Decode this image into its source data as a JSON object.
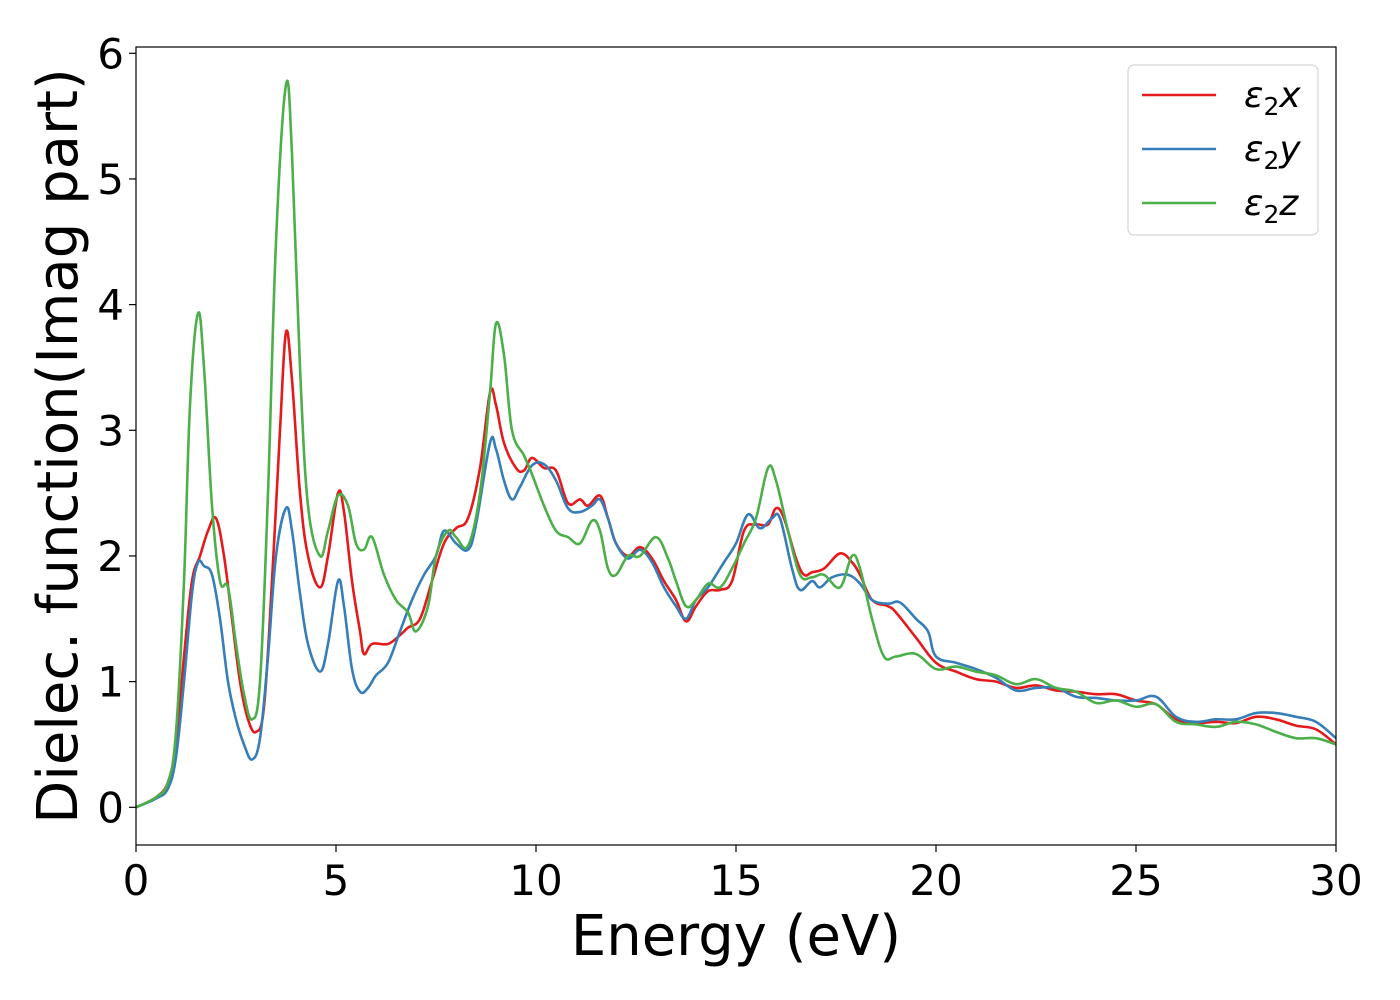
{
  "chart_data": {
    "type": "line",
    "title": "",
    "xlabel": "Energy (eV)",
    "ylabel": "Dielec. function(Imag part)",
    "xlim": [
      0,
      30
    ],
    "ylim": [
      -0.3,
      6.05
    ],
    "xticks": [
      0,
      5,
      10,
      15,
      20,
      25,
      30
    ],
    "xtick_labels": [
      "0",
      "5",
      "10",
      "15",
      "20",
      "25",
      "30"
    ],
    "yticks": [
      0,
      1,
      2,
      3,
      4,
      5,
      6
    ],
    "ytick_labels": [
      "0",
      "1",
      "2",
      "3",
      "4",
      "5",
      "6"
    ],
    "grid": false,
    "legend": {
      "position": "top-right",
      "entries": [
        {
          "symbol": "ε",
          "sub": "2",
          "var": "x"
        },
        {
          "symbol": "ε",
          "sub": "2",
          "var": "y"
        },
        {
          "symbol": "ε",
          "sub": "2",
          "var": "z"
        }
      ]
    },
    "series": [
      {
        "color": "#e41a1c",
        "points": [
          [
            0,
            0
          ],
          [
            0.5,
            0.08
          ],
          [
            0.8,
            0.2
          ],
          [
            1.0,
            0.5
          ],
          [
            1.2,
            1.2
          ],
          [
            1.4,
            1.8
          ],
          [
            1.6,
            2.0
          ],
          [
            1.8,
            2.2
          ],
          [
            2.0,
            2.3
          ],
          [
            2.2,
            2.0
          ],
          [
            2.4,
            1.5
          ],
          [
            2.6,
            1.0
          ],
          [
            2.8,
            0.7
          ],
          [
            3.0,
            0.6
          ],
          [
            3.2,
            0.8
          ],
          [
            3.4,
            1.8
          ],
          [
            3.6,
            3.0
          ],
          [
            3.75,
            3.78
          ],
          [
            3.9,
            3.4
          ],
          [
            4.1,
            2.5
          ],
          [
            4.3,
            2.0
          ],
          [
            4.6,
            1.75
          ],
          [
            4.8,
            2.0
          ],
          [
            5.05,
            2.5
          ],
          [
            5.2,
            2.35
          ],
          [
            5.4,
            1.8
          ],
          [
            5.6,
            1.4
          ],
          [
            5.7,
            1.22
          ],
          [
            5.9,
            1.3
          ],
          [
            6.3,
            1.3
          ],
          [
            6.6,
            1.37
          ],
          [
            6.8,
            1.43
          ],
          [
            7.1,
            1.5
          ],
          [
            7.4,
            1.8
          ],
          [
            7.7,
            2.1
          ],
          [
            8.0,
            2.22
          ],
          [
            8.3,
            2.3
          ],
          [
            8.6,
            2.7
          ],
          [
            8.85,
            3.3
          ],
          [
            9.0,
            3.2
          ],
          [
            9.2,
            2.9
          ],
          [
            9.5,
            2.7
          ],
          [
            9.7,
            2.68
          ],
          [
            9.9,
            2.78
          ],
          [
            10.2,
            2.7
          ],
          [
            10.5,
            2.68
          ],
          [
            10.8,
            2.42
          ],
          [
            11.1,
            2.45
          ],
          [
            11.3,
            2.4
          ],
          [
            11.6,
            2.48
          ],
          [
            11.8,
            2.3
          ],
          [
            12.0,
            2.1
          ],
          [
            12.3,
            2.0
          ],
          [
            12.6,
            2.07
          ],
          [
            12.9,
            1.98
          ],
          [
            13.2,
            1.8
          ],
          [
            13.5,
            1.65
          ],
          [
            13.75,
            1.48
          ],
          [
            14.0,
            1.6
          ],
          [
            14.3,
            1.72
          ],
          [
            14.6,
            1.73
          ],
          [
            14.9,
            1.8
          ],
          [
            15.2,
            2.2
          ],
          [
            15.5,
            2.25
          ],
          [
            15.8,
            2.25
          ],
          [
            16.0,
            2.38
          ],
          [
            16.2,
            2.3
          ],
          [
            16.5,
            1.98
          ],
          [
            16.7,
            1.85
          ],
          [
            16.9,
            1.87
          ],
          [
            17.2,
            1.9
          ],
          [
            17.6,
            2.02
          ],
          [
            17.9,
            1.95
          ],
          [
            18.1,
            1.85
          ],
          [
            18.4,
            1.65
          ],
          [
            18.8,
            1.6
          ],
          [
            19.0,
            1.55
          ],
          [
            19.5,
            1.35
          ],
          [
            20.0,
            1.15
          ],
          [
            20.5,
            1.08
          ],
          [
            21.0,
            1.02
          ],
          [
            21.5,
            1.0
          ],
          [
            22.0,
            0.95
          ],
          [
            22.5,
            0.97
          ],
          [
            23.0,
            0.93
          ],
          [
            23.5,
            0.92
          ],
          [
            24.0,
            0.9
          ],
          [
            24.5,
            0.9
          ],
          [
            25.0,
            0.85
          ],
          [
            25.5,
            0.82
          ],
          [
            26.0,
            0.7
          ],
          [
            26.5,
            0.67
          ],
          [
            27.0,
            0.68
          ],
          [
            27.5,
            0.67
          ],
          [
            28.0,
            0.72
          ],
          [
            28.5,
            0.7
          ],
          [
            29.0,
            0.65
          ],
          [
            29.5,
            0.62
          ],
          [
            30.0,
            0.5
          ]
        ]
      },
      {
        "color": "#377eb8",
        "points": [
          [
            0,
            0
          ],
          [
            0.5,
            0.07
          ],
          [
            0.8,
            0.15
          ],
          [
            1.0,
            0.4
          ],
          [
            1.2,
            1.0
          ],
          [
            1.4,
            1.7
          ],
          [
            1.55,
            1.95
          ],
          [
            1.7,
            1.92
          ],
          [
            1.9,
            1.85
          ],
          [
            2.1,
            1.5
          ],
          [
            2.3,
            1.0
          ],
          [
            2.5,
            0.7
          ],
          [
            2.7,
            0.5
          ],
          [
            2.9,
            0.38
          ],
          [
            3.1,
            0.55
          ],
          [
            3.3,
            1.2
          ],
          [
            3.5,
            2.0
          ],
          [
            3.75,
            2.38
          ],
          [
            3.9,
            2.2
          ],
          [
            4.1,
            1.7
          ],
          [
            4.3,
            1.3
          ],
          [
            4.6,
            1.08
          ],
          [
            4.8,
            1.3
          ],
          [
            5.05,
            1.8
          ],
          [
            5.2,
            1.6
          ],
          [
            5.4,
            1.1
          ],
          [
            5.6,
            0.92
          ],
          [
            5.8,
            0.95
          ],
          [
            6.0,
            1.05
          ],
          [
            6.3,
            1.15
          ],
          [
            6.6,
            1.4
          ],
          [
            6.9,
            1.65
          ],
          [
            7.2,
            1.85
          ],
          [
            7.5,
            2.0
          ],
          [
            7.7,
            2.2
          ],
          [
            8.0,
            2.1
          ],
          [
            8.3,
            2.05
          ],
          [
            8.5,
            2.25
          ],
          [
            8.85,
            2.9
          ],
          [
            9.0,
            2.85
          ],
          [
            9.2,
            2.6
          ],
          [
            9.4,
            2.45
          ],
          [
            9.6,
            2.55
          ],
          [
            9.9,
            2.72
          ],
          [
            10.2,
            2.73
          ],
          [
            10.5,
            2.6
          ],
          [
            10.8,
            2.38
          ],
          [
            11.1,
            2.35
          ],
          [
            11.4,
            2.4
          ],
          [
            11.6,
            2.45
          ],
          [
            11.8,
            2.3
          ],
          [
            12.0,
            2.1
          ],
          [
            12.3,
            1.98
          ],
          [
            12.6,
            2.05
          ],
          [
            12.9,
            1.95
          ],
          [
            13.2,
            1.75
          ],
          [
            13.5,
            1.6
          ],
          [
            13.75,
            1.5
          ],
          [
            14.0,
            1.65
          ],
          [
            14.3,
            1.75
          ],
          [
            14.7,
            1.95
          ],
          [
            15.0,
            2.1
          ],
          [
            15.3,
            2.33
          ],
          [
            15.6,
            2.22
          ],
          [
            15.9,
            2.3
          ],
          [
            16.1,
            2.3
          ],
          [
            16.4,
            1.9
          ],
          [
            16.6,
            1.73
          ],
          [
            16.9,
            1.8
          ],
          [
            17.1,
            1.75
          ],
          [
            17.4,
            1.83
          ],
          [
            17.8,
            1.85
          ],
          [
            18.1,
            1.78
          ],
          [
            18.4,
            1.65
          ],
          [
            18.8,
            1.62
          ],
          [
            19.1,
            1.63
          ],
          [
            19.5,
            1.5
          ],
          [
            19.8,
            1.4
          ],
          [
            20.0,
            1.2
          ],
          [
            20.5,
            1.15
          ],
          [
            21.0,
            1.1
          ],
          [
            21.5,
            1.03
          ],
          [
            22.0,
            0.93
          ],
          [
            22.5,
            0.95
          ],
          [
            23.0,
            0.95
          ],
          [
            23.5,
            0.88
          ],
          [
            24.0,
            0.87
          ],
          [
            24.5,
            0.85
          ],
          [
            25.0,
            0.85
          ],
          [
            25.5,
            0.88
          ],
          [
            26.0,
            0.72
          ],
          [
            26.5,
            0.68
          ],
          [
            27.0,
            0.7
          ],
          [
            27.5,
            0.7
          ],
          [
            28.0,
            0.75
          ],
          [
            28.5,
            0.75
          ],
          [
            29.0,
            0.72
          ],
          [
            29.5,
            0.68
          ],
          [
            30.0,
            0.55
          ]
        ]
      },
      {
        "color": "#4daf4a",
        "points": [
          [
            0,
            0
          ],
          [
            0.5,
            0.08
          ],
          [
            0.8,
            0.2
          ],
          [
            1.0,
            0.6
          ],
          [
            1.2,
            1.8
          ],
          [
            1.35,
            3.2
          ],
          [
            1.55,
            3.93
          ],
          [
            1.7,
            3.5
          ],
          [
            1.9,
            2.4
          ],
          [
            2.1,
            1.8
          ],
          [
            2.3,
            1.75
          ],
          [
            2.5,
            1.3
          ],
          [
            2.7,
            0.9
          ],
          [
            2.9,
            0.7
          ],
          [
            3.1,
            1.0
          ],
          [
            3.3,
            2.5
          ],
          [
            3.5,
            4.5
          ],
          [
            3.75,
            5.75
          ],
          [
            3.9,
            5.2
          ],
          [
            4.1,
            3.5
          ],
          [
            4.3,
            2.4
          ],
          [
            4.6,
            2.0
          ],
          [
            4.8,
            2.2
          ],
          [
            5.05,
            2.48
          ],
          [
            5.3,
            2.4
          ],
          [
            5.5,
            2.1
          ],
          [
            5.7,
            2.05
          ],
          [
            5.9,
            2.15
          ],
          [
            6.2,
            1.85
          ],
          [
            6.5,
            1.65
          ],
          [
            6.8,
            1.55
          ],
          [
            7.0,
            1.4
          ],
          [
            7.3,
            1.6
          ],
          [
            7.5,
            2.0
          ],
          [
            7.8,
            2.2
          ],
          [
            8.0,
            2.15
          ],
          [
            8.3,
            2.08
          ],
          [
            8.6,
            2.5
          ],
          [
            8.85,
            3.3
          ],
          [
            9.0,
            3.85
          ],
          [
            9.2,
            3.6
          ],
          [
            9.4,
            3.0
          ],
          [
            9.7,
            2.8
          ],
          [
            9.9,
            2.65
          ],
          [
            10.2,
            2.4
          ],
          [
            10.5,
            2.2
          ],
          [
            10.8,
            2.15
          ],
          [
            11.1,
            2.1
          ],
          [
            11.4,
            2.28
          ],
          [
            11.6,
            2.2
          ],
          [
            11.8,
            1.9
          ],
          [
            12.0,
            1.85
          ],
          [
            12.3,
            2.0
          ],
          [
            12.6,
            2.0
          ],
          [
            13.0,
            2.15
          ],
          [
            13.3,
            1.98
          ],
          [
            13.5,
            1.8
          ],
          [
            13.75,
            1.6
          ],
          [
            14.0,
            1.65
          ],
          [
            14.3,
            1.78
          ],
          [
            14.6,
            1.75
          ],
          [
            14.9,
            1.9
          ],
          [
            15.2,
            2.1
          ],
          [
            15.5,
            2.3
          ],
          [
            15.8,
            2.7
          ],
          [
            16.0,
            2.6
          ],
          [
            16.3,
            2.2
          ],
          [
            16.6,
            1.85
          ],
          [
            16.9,
            1.83
          ],
          [
            17.2,
            1.85
          ],
          [
            17.6,
            1.75
          ],
          [
            17.9,
            2.0
          ],
          [
            18.1,
            1.9
          ],
          [
            18.4,
            1.5
          ],
          [
            18.7,
            1.2
          ],
          [
            19.0,
            1.2
          ],
          [
            19.5,
            1.22
          ],
          [
            20.0,
            1.1
          ],
          [
            20.5,
            1.12
          ],
          [
            21.0,
            1.08
          ],
          [
            21.5,
            1.05
          ],
          [
            22.0,
            0.98
          ],
          [
            22.5,
            1.02
          ],
          [
            23.0,
            0.95
          ],
          [
            23.5,
            0.92
          ],
          [
            24.0,
            0.83
          ],
          [
            24.5,
            0.85
          ],
          [
            25.0,
            0.8
          ],
          [
            25.5,
            0.82
          ],
          [
            26.0,
            0.68
          ],
          [
            26.5,
            0.66
          ],
          [
            27.0,
            0.64
          ],
          [
            27.5,
            0.68
          ],
          [
            28.0,
            0.66
          ],
          [
            28.5,
            0.6
          ],
          [
            29.0,
            0.55
          ],
          [
            29.5,
            0.55
          ],
          [
            30.0,
            0.5
          ]
        ]
      }
    ]
  }
}
